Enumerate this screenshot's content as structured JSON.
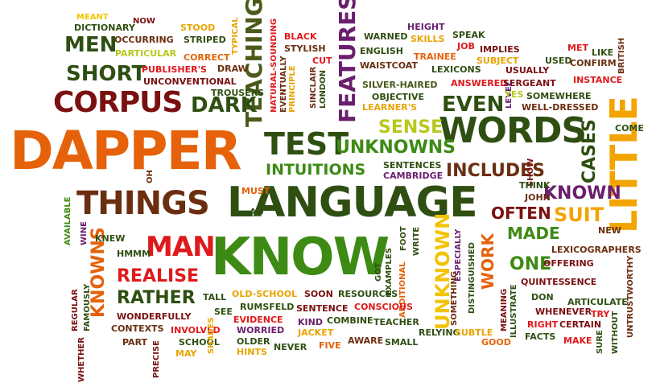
{
  "colors": {
    "orange": "#e5620a",
    "dark_green": "#2f4f12",
    "brown": "#6b2e10",
    "dark_red": "#7a1010",
    "red": "#e0191c",
    "olive": "#4a5a1a",
    "yellow": "#f2c400",
    "yellow_green": "#b8c81c",
    "green": "#3d8a14",
    "purple": "#6a1f6e",
    "gold": "#e8a400"
  },
  "words": {
    "dapper": "DAPPER",
    "language": "LANGUAGE",
    "know": "KNOW",
    "words": "WORDS",
    "little": "LITTLE",
    "things": "THINGS",
    "corpus": "CORPUS",
    "test": "TEST",
    "features": "FEATURES",
    "teaching": "TEACHING",
    "unknowns": "UNKNOWNS",
    "knowns": "KNOWNS",
    "unknown": "UNKNOWN",
    "man": "MAN",
    "short": "SHORT",
    "men": "MEN",
    "dark": "DARK",
    "even": "EVEN",
    "sense": "SENSE",
    "includes": "INCLUDES",
    "intuitions": "INTUITIONS",
    "known": "KNOWN",
    "often": "OFTEN",
    "suit": "SUIT",
    "cases": "CASES",
    "realise": "REALISE",
    "rather": "RATHER",
    "made": "MADE",
    "one": "ONE",
    "work": "WORK",
    "meant": "MEANT",
    "now": "NOW",
    "dictionary": "DICTIONARY",
    "occurring": "OCCURRING",
    "particular": "PARTICULAR",
    "stood": "STOOD",
    "striped": "STRIPED",
    "correct": "CORRECT",
    "typical": "TYPICAL",
    "draw": "DRAW",
    "publishers": "PUBLISHER'S",
    "unconventional": "UNCONVENTIONAL",
    "trousers": "TROUSERS",
    "natural_sounding": "NATURAL-SOUNDING",
    "black": "BLACK",
    "stylish": "STYLISH",
    "cut": "CUT",
    "eventually": "EVENTUALLY",
    "principle": "PRINCIPLE",
    "sinclair": "SINCLAIR",
    "london": "LONDON",
    "warned": "WARNED",
    "english": "ENGLISH",
    "waistcoat": "WAISTCOAT",
    "height": "HEIGHT",
    "skills": "SKILLS",
    "speak": "SPEAK",
    "trainee": "TRAINEE",
    "job": "JOB",
    "implies": "IMPLIES",
    "lexicons": "LEXICONS",
    "subject": "SUBJECT",
    "usually": "USUALLY",
    "met": "MET",
    "like": "LIKE",
    "british": "BRITISH",
    "used": "USED",
    "confirm": "CONFIRM",
    "silver_haired": "SILVER-HAIRED",
    "answered": "ANSWERED",
    "sergeant": "SERGEANT",
    "instance": "INSTANCE",
    "objective": "OBJECTIVE",
    "learners": "LEARNER'S",
    "level": "LEVEL",
    "yes": "YES",
    "somewhere": "SOMEWHERE",
    "well_dressed": "WELL-DRESSED",
    "come": "COME",
    "oh": "OH",
    "sentences": "SENTENCES",
    "cambridge": "CAMBRIDGE",
    "show": "SHOW",
    "must": "MUST",
    "ad": "AD",
    "think": "THINK",
    "john": "JOHN",
    "new": "NEW",
    "available": "AVAILABLE",
    "wine": "WINE",
    "knew": "KNEW",
    "hmmm": "HMMM",
    "foot": "FOOT",
    "write": "WRITE",
    "got": "GOT",
    "examples": "EXAMPLES",
    "especially": "ESPECIALLY",
    "lexicographers": "LEXICOGRAPHERS",
    "offering": "OFFERING",
    "additional": "ADDITIONAL",
    "distinguished": "DISTINGUISHED",
    "untrustworthy": "UNTRUSTWORTHY",
    "quintessence": "QUINTESSENCE",
    "regular": "REGULAR",
    "famously": "FAMOUSLY",
    "tall": "TALL",
    "old_school": "OLD-SCHOOL",
    "soon": "SOON",
    "resources": "RESOURCES",
    "something": "SOMETHING",
    "articulate": "ARTICULATE",
    "whenever": "WHENEVER",
    "try": "TRY",
    "don": "DON",
    "illustrate": "ILLUSTRATE",
    "meaning": "MEANING",
    "wonderfully": "WONDERFULLY",
    "see": "SEE",
    "rumsfeld": "RUMSFELD",
    "sentence": "SENTENCE",
    "conscious": "CONSCIOUS",
    "right": "RIGHT",
    "certain": "CERTAIN",
    "whether": "WHETHER",
    "contexts": "CONTEXTS",
    "evidence": "EVIDENCE",
    "kind": "KIND",
    "combine": "COMBINE",
    "teacher": "TEACHER",
    "relying": "RELYING",
    "subtle": "SUBTLE",
    "facts": "FACTS",
    "make": "MAKE",
    "sure": "SURE",
    "without": "WITHOUT",
    "part": "PART",
    "involved": "INVOLVED",
    "worried": "WORRIED",
    "jacket": "JACKET",
    "precise": "PRECISE",
    "school": "SCHOOL",
    "shades": "SHADES",
    "older": "OLDER",
    "may": "MAY",
    "hints": "HINTS",
    "never": "NEVER",
    "five": "FIVE",
    "aware": "AWARE",
    "small": "SMALL",
    "good": "GOOD"
  }
}
